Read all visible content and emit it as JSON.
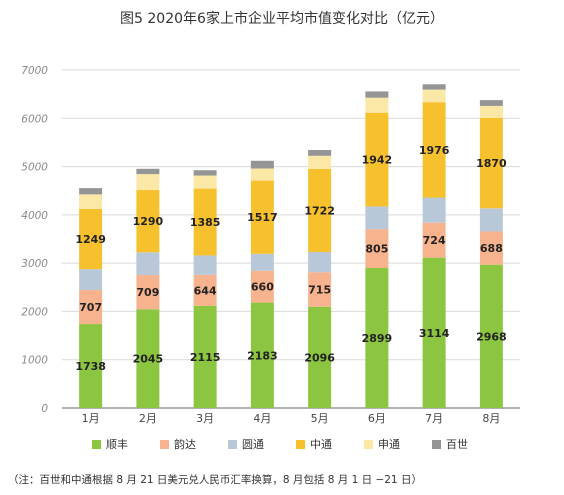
{
  "chart_data": {
    "type": "bar",
    "stacked": true,
    "title": "图5 2020年6家上市企业平均市值变化对比（亿元）",
    "categories": [
      "1月",
      "2月",
      "3月",
      "4月",
      "5月",
      "6月",
      "7月",
      "8月"
    ],
    "ylim": [
      0,
      7000
    ],
    "yticks": [
      0,
      1000,
      2000,
      3000,
      4000,
      5000,
      6000,
      7000
    ],
    "grid": true,
    "legend_position": "bottom",
    "series": [
      {
        "name": "顺丰",
        "color": "#8cc640",
        "labels_shown": true,
        "values": [
          1738,
          2045,
          2115,
          2183,
          2096,
          2899,
          3114,
          2968
        ]
      },
      {
        "name": "韵达",
        "color": "#f7b38d",
        "labels_shown": true,
        "values": [
          707,
          709,
          644,
          660,
          715,
          805,
          724,
          688
        ]
      },
      {
        "name": "圆通",
        "color": "#b9c8d9",
        "labels_shown": false,
        "values": [
          430,
          470,
          400,
          350,
          420,
          470,
          520,
          480
        ]
      },
      {
        "name": "中通",
        "color": "#f7c12e",
        "labels_shown": true,
        "values": [
          1249,
          1290,
          1385,
          1517,
          1722,
          1942,
          1976,
          1870
        ]
      },
      {
        "name": "申通",
        "color": "#fbe8a6",
        "labels_shown": false,
        "values": [
          300,
          330,
          270,
          250,
          270,
          310,
          260,
          250
        ]
      },
      {
        "name": "百世",
        "color": "#959595",
        "labels_shown": false,
        "values": [
          130,
          110,
          110,
          160,
          120,
          130,
          110,
          120
        ]
      }
    ]
  },
  "footnote": "（注：百世和中通根据 8 月 21 日美元兑人民币汇率换算，8 月包括 8 月 1 日 −21 日）"
}
